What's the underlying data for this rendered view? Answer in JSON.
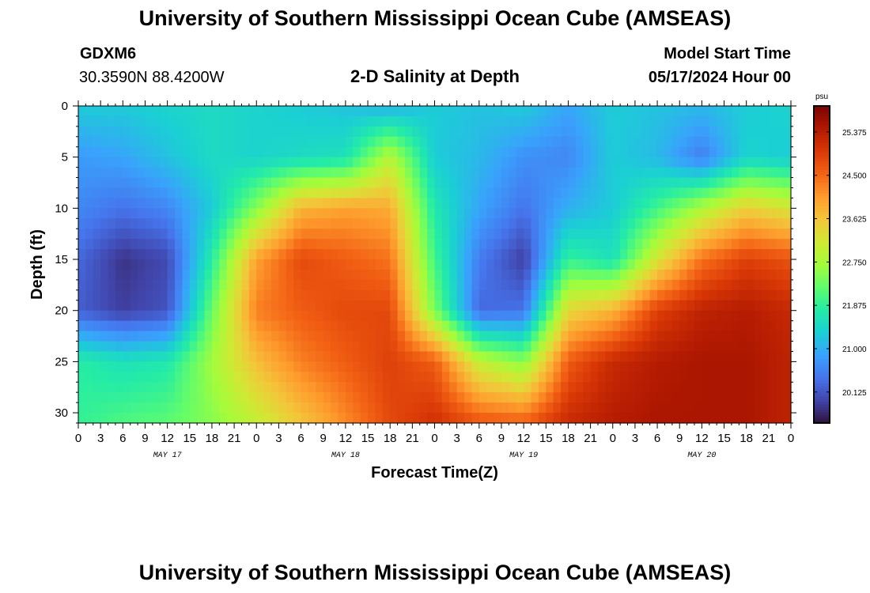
{
  "header": {
    "title": "University of Southern Mississippi Ocean Cube (AMSEAS)",
    "station": "GDXM6",
    "coords": "30.3590N  88.4200W",
    "subtitle": "2-D Salinity at Depth",
    "model_start_label": "Model Start Time",
    "model_start_value": "05/17/2024 Hour 00"
  },
  "footer": {
    "title": "University of Southern Mississippi Ocean Cube (AMSEAS)"
  },
  "chart_data": {
    "type": "heatmap",
    "title": "2-D Salinity at Depth",
    "xlabel": "Forecast Time(Z)",
    "ylabel": "Depth (ft)",
    "x_range_hours": [
      0,
      96
    ],
    "y_range_ft": [
      0,
      31
    ],
    "x_tick_labels": [
      "0",
      "3",
      "6",
      "9",
      "12",
      "15",
      "18",
      "21",
      "0",
      "3",
      "6",
      "9",
      "12",
      "15",
      "18",
      "21",
      "0",
      "3",
      "6",
      "9",
      "12",
      "15",
      "18",
      "21",
      "0",
      "3",
      "6",
      "9",
      "12",
      "15",
      "18",
      "21",
      "0"
    ],
    "day_labels": [
      {
        "label": "MAY 17",
        "hour": 12
      },
      {
        "label": "MAY 18",
        "hour": 36
      },
      {
        "label": "MAY 19",
        "hour": 60
      },
      {
        "label": "MAY 20",
        "hour": 84
      }
    ],
    "y_ticks": [
      0,
      5,
      10,
      15,
      20,
      25,
      30
    ],
    "colorbar": {
      "unit": "psu",
      "min": 19.5,
      "max": 25.9,
      "labels": [
        "25.375",
        "24.500",
        "23.625",
        "22.750",
        "21.875",
        "21.000",
        "20.125"
      ],
      "colors": [
        "#30123b",
        "#4145ab",
        "#4675ed",
        "#39a2fc",
        "#1bcfd4",
        "#24eca6",
        "#61fc6c",
        "#a4fc3b",
        "#d1e834",
        "#f3c63a",
        "#fe9b2d",
        "#f36315",
        "#d93806",
        "#b11901",
        "#7a0402"
      ]
    },
    "columns_hours": [
      0,
      6,
      12,
      18,
      24,
      30,
      36,
      42,
      48,
      54,
      60,
      66,
      72,
      78,
      84,
      90,
      96
    ],
    "rows_depth_ft": [
      0,
      5,
      10,
      15,
      20,
      25,
      31
    ],
    "salinity_psu": [
      [
        21.3,
        21.3,
        21.4,
        21.5,
        21.4,
        21.3,
        21.2,
        21.0,
        21.3,
        21.2,
        21.3,
        20.9,
        21.3,
        21.2,
        21.1,
        21.3,
        21.4
      ],
      [
        20.8,
        20.9,
        21.2,
        21.5,
        21.4,
        21.5,
        21.6,
        22.9,
        21.3,
        21.1,
        20.7,
        20.6,
        21.3,
        21.1,
        20.5,
        21.4,
        21.3
      ],
      [
        20.6,
        20.4,
        20.6,
        21.3,
        22.5,
        23.8,
        24.0,
        23.9,
        21.7,
        20.9,
        20.4,
        21.0,
        21.3,
        22.0,
        22.8,
        23.5,
        23.2
      ],
      [
        20.3,
        19.8,
        20.0,
        21.8,
        24.0,
        24.8,
        24.6,
        24.4,
        22.0,
        20.5,
        19.9,
        21.9,
        21.6,
        23.2,
        24.4,
        24.9,
        24.7
      ],
      [
        20.2,
        19.9,
        20.1,
        22.3,
        24.3,
        24.6,
        24.8,
        24.8,
        22.4,
        20.3,
        20.4,
        23.4,
        23.8,
        24.9,
        25.3,
        25.4,
        25.2
      ],
      [
        21.8,
        21.6,
        21.7,
        22.7,
        23.7,
        24.3,
        24.6,
        24.9,
        24.6,
        23.0,
        22.5,
        24.6,
        25.2,
        25.4,
        25.5,
        25.5,
        25.3
      ],
      [
        21.9,
        22.1,
        22.2,
        22.5,
        23.0,
        23.6,
        24.2,
        24.8,
        25.1,
        24.7,
        24.6,
        25.2,
        25.4,
        25.5,
        25.5,
        25.5,
        25.3
      ]
    ]
  }
}
